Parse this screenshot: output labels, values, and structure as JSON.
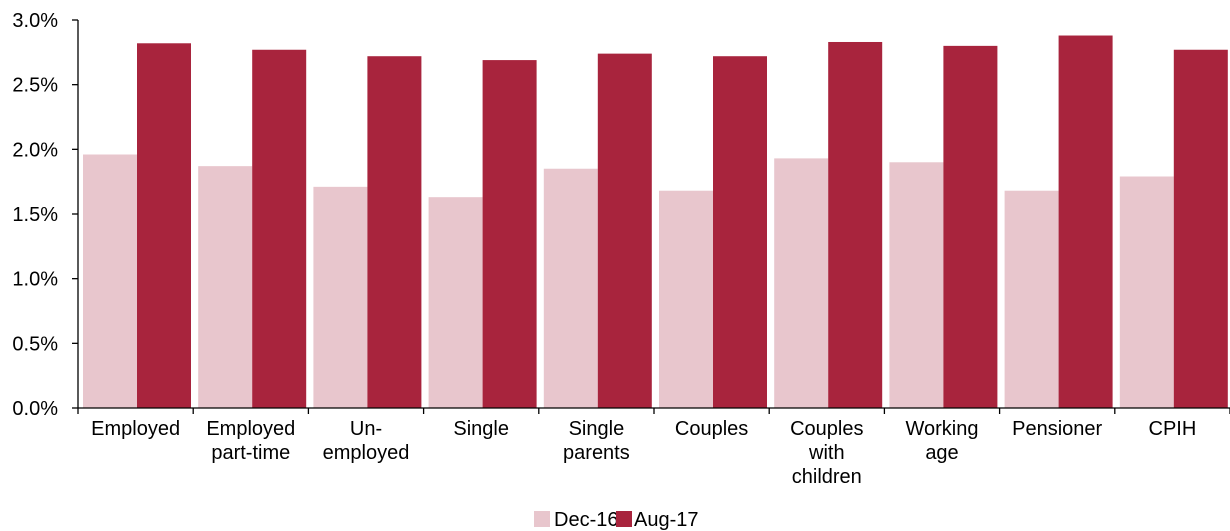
{
  "chart_data": {
    "type": "bar",
    "title": "",
    "xlabel": "",
    "ylabel": "",
    "categories": [
      [
        "Employed"
      ],
      [
        "Employed",
        "part-time"
      ],
      [
        "Un-",
        "employed"
      ],
      [
        "Single"
      ],
      [
        "Single",
        "parents"
      ],
      [
        "Couples"
      ],
      [
        "Couples",
        "with",
        "children"
      ],
      [
        "Working",
        "age"
      ],
      [
        "Pensioner"
      ],
      [
        "CPIH"
      ]
    ],
    "series": [
      {
        "name": "Dec-16",
        "color": "#e8c6cd",
        "values": [
          1.96,
          1.87,
          1.71,
          1.63,
          1.85,
          1.68,
          1.93,
          1.9,
          1.68,
          1.79
        ]
      },
      {
        "name": "Aug-17",
        "color": "#a8243d",
        "values": [
          2.82,
          2.77,
          2.72,
          2.69,
          2.74,
          2.72,
          2.83,
          2.8,
          2.88,
          2.77
        ]
      }
    ],
    "ylim": [
      0,
      3.0
    ],
    "yticks": [
      "0.0%",
      "0.5%",
      "1.0%",
      "1.5%",
      "2.0%",
      "2.5%",
      "3.0%"
    ],
    "grid": false,
    "legend_position": "bottom-center"
  }
}
